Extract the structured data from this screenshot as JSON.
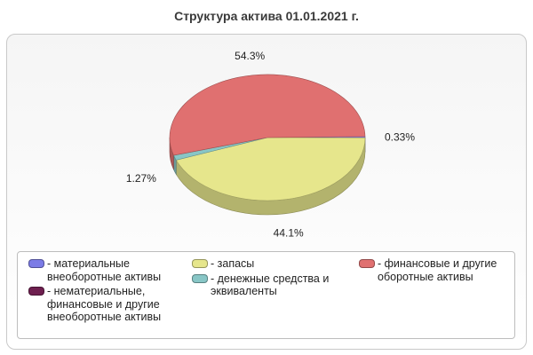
{
  "chart_data": {
    "type": "pie",
    "title": "Структура актива 01.01.2021 г.",
    "three_d": true,
    "slices": [
      {
        "label": "- материальные внеоборотные активы",
        "lines": [
          "- материальные",
          "внеоборотные активы"
        ],
        "value": 0.33,
        "value_label": "0.33%",
        "color": "#7b7be6"
      },
      {
        "label": "- нематериальные, финансовые и другие внеоборотные активы",
        "lines": [
          "- нематериальные,",
          "финансовые и другие",
          "внеоборотные активы"
        ],
        "value": 0,
        "value_label": "",
        "color": "#6e1f4f"
      },
      {
        "label": "- запасы",
        "lines": [
          "- запасы"
        ],
        "value": 44.1,
        "value_label": "44.1%",
        "color": "#e6e68c"
      },
      {
        "label": "- денежные средства и эквиваленты",
        "lines": [
          "- денежные средства и",
          "эквиваленты"
        ],
        "value": 1.27,
        "value_label": "1.27%",
        "color": "#88c6c6"
      },
      {
        "label": "- финансовые и другие оборотные активы",
        "lines": [
          "- финансовые и другие",
          "оборотные активы"
        ],
        "value": 54.3,
        "value_label": "54.3%",
        "color": "#e07070"
      }
    ],
    "legend_position": "bottom"
  }
}
